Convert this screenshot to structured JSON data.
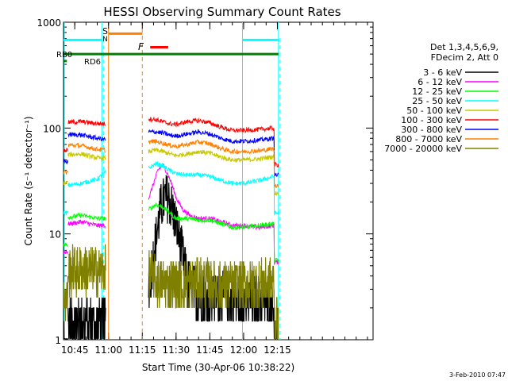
{
  "chart_data": {
    "type": "line",
    "title": "HESSI Observing Summary Count Rates",
    "xlabel": "Start Time (30-Apr-06 10:38:22)",
    "ylabel": "Count Rate (s⁻¹ detector⁻¹)",
    "yscale": "log",
    "ylim": [
      1,
      1000
    ],
    "xlim_minutes": [
      -20.0,
      117.5
    ],
    "x_ticks": [
      {
        "label": "10:45",
        "m": -15
      },
      {
        "label": "11:00",
        "m": 0
      },
      {
        "label": "11:15",
        "m": 15
      },
      {
        "label": "11:30",
        "m": 30
      },
      {
        "label": "11:45",
        "m": 45
      },
      {
        "label": "12:00",
        "m": 60
      },
      {
        "label": "12:15",
        "m": 75
      }
    ],
    "y_ticks": [
      {
        "label": "1",
        "v": 1
      },
      {
        "label": "10",
        "v": 10
      },
      {
        "label": "100",
        "v": 100
      },
      {
        "label": "1000",
        "v": 1000
      }
    ],
    "legend": {
      "header": [
        "Det 1,3,4,5,6,9,",
        "FDecim 2, Att 0"
      ],
      "placement": "right"
    },
    "series": [
      {
        "name": "3 - 6 keV",
        "color": "#000000",
        "x": [
          -22,
          -12,
          -5,
          -1.5,
          18,
          20,
          22,
          23,
          25,
          27,
          29,
          31,
          33,
          35,
          40,
          45,
          50,
          55,
          60,
          67,
          73.5
        ],
        "y": [
          1.5,
          1.6,
          1.5,
          1.5,
          3.0,
          6.5,
          12,
          17,
          22,
          21,
          15,
          10,
          6,
          3.5,
          2.5,
          2.5,
          2.5,
          2.4,
          2.3,
          2.3,
          2.3
        ]
      },
      {
        "name": "6 - 12 keV",
        "color": "#ff00ff",
        "x": [
          -22,
          -12,
          -5,
          -1.5,
          18,
          20,
          22,
          24,
          26,
          28,
          30,
          33,
          36,
          40,
          45,
          50,
          55,
          60,
          67,
          73.5
        ],
        "y": [
          12,
          13,
          12,
          12,
          22,
          30,
          40,
          45,
          38,
          30,
          22,
          17,
          15,
          14,
          14,
          13,
          12,
          12,
          11.5,
          12
        ]
      },
      {
        "name": "12 - 25 keV",
        "color": "#00ff00",
        "x": [
          -22,
          -12,
          -5,
          -1.5,
          18,
          21,
          24,
          27,
          30,
          35,
          40,
          45,
          50,
          55,
          60,
          67,
          73.5
        ],
        "y": [
          14,
          15,
          14,
          14,
          17,
          19,
          18,
          16,
          14,
          14,
          13.5,
          13.5,
          12.5,
          11.5,
          11.5,
          12,
          12.5
        ]
      },
      {
        "name": "25 - 50 keV",
        "color": "#00ffff",
        "x": [
          -22,
          -12,
          -5,
          -1.5,
          18,
          21,
          24,
          27,
          30,
          35,
          40,
          45,
          50,
          55,
          60,
          67,
          73.5
        ],
        "y": [
          28,
          30,
          33,
          38,
          42,
          46,
          44,
          40,
          37,
          36,
          36,
          35,
          32,
          30,
          30,
          32,
          35
        ]
      },
      {
        "name": "50 - 100 keV",
        "color": "#c8c800",
        "x": [
          -22,
          -12,
          -5,
          -1.5,
          18,
          21,
          24,
          27,
          30,
          35,
          40,
          45,
          50,
          55,
          60,
          67,
          73.5
        ],
        "y": [
          55,
          57,
          52,
          52,
          60,
          62,
          60,
          57,
          55,
          57,
          60,
          58,
          53,
          50,
          50,
          51,
          54
        ]
      },
      {
        "name": "100 - 300 keV",
        "color": "#ff0000",
        "x": [
          -22,
          -12,
          -5,
          -1.5,
          18,
          21,
          24,
          27,
          30,
          35,
          40,
          45,
          50,
          55,
          60,
          67,
          73.5
        ],
        "y": [
          112,
          115,
          110,
          110,
          122,
          120,
          115,
          110,
          108,
          115,
          118,
          112,
          102,
          95,
          95,
          97,
          100
        ]
      },
      {
        "name": "300 - 800 keV",
        "color": "#0000ff",
        "x": [
          -22,
          -12,
          -5,
          -1.5,
          18,
          21,
          24,
          27,
          30,
          35,
          40,
          45,
          50,
          55,
          60,
          67,
          73.5
        ],
        "y": [
          88,
          86,
          80,
          78,
          92,
          92,
          90,
          86,
          84,
          88,
          92,
          88,
          80,
          75,
          75,
          77,
          80
        ]
      },
      {
        "name": "800 - 7000 keV",
        "color": "#ff8000",
        "x": [
          -22,
          -12,
          -5,
          -1.5,
          18,
          21,
          24,
          27,
          30,
          35,
          40,
          45,
          50,
          55,
          60,
          67,
          73.5
        ],
        "y": [
          70,
          68,
          63,
          62,
          74,
          75,
          72,
          69,
          67,
          70,
          74,
          71,
          64,
          60,
          60,
          61,
          64
        ]
      },
      {
        "name": "7000 - 20000 keV",
        "color": "#808000",
        "x": [
          -22,
          -12,
          -5,
          -1.5,
          18,
          22,
          26,
          30,
          35,
          40,
          45,
          50,
          55,
          60,
          67,
          73.5
        ],
        "y": [
          4.5,
          4.6,
          4.5,
          4.5,
          4.2,
          3.5,
          3.4,
          3.3,
          3.4,
          3.6,
          3.4,
          3.2,
          3.2,
          3.3,
          3.4,
          3.5
        ]
      }
    ],
    "annotations": {
      "RB0": {
        "label": "RB0",
        "color": "#008000",
        "y": 500,
        "x_start_m": -22,
        "x_end_m": 75.5
      },
      "RD6": {
        "label": "RD6",
        "color": "#008000",
        "y": 430,
        "x_start_m": -22,
        "x_end_m": -18.5
      },
      "S": {
        "label": "S",
        "color": "#ff8000",
        "x_m": -1.3
      },
      "N": {
        "label": "N",
        "color": "#00c8c8",
        "x_m": -1.3
      },
      "F": {
        "label": "F",
        "color": "#ff0000",
        "x_m": 13.5
      },
      "saa_bar": {
        "color": "#00ffff",
        "y": 680,
        "segments_m": [
          [
            -22,
            -3.0
          ],
          [
            59.5,
            75.5
          ]
        ]
      },
      "saa_lines_m": [
        -22.0,
        -3.0,
        59.5,
        75.5
      ],
      "saa_dashed_m": [
        -3.0,
        75.5
      ],
      "orange_bar": {
        "color": "#ff8000",
        "y": 780,
        "x_start_m": 0,
        "x_end_m": 15
      },
      "orange_lines_m": [
        0.0
      ],
      "orange_dashed_m": [
        15.0
      ],
      "red_bar": {
        "color": "#ff0000",
        "y": 580,
        "x_start_m": 18.5,
        "x_end_m": 26.5
      },
      "data_gap_m": [
        -1.3,
        17.8
      ]
    }
  },
  "footer": {
    "timestamp": "3-Feb-2010 07:47"
  }
}
